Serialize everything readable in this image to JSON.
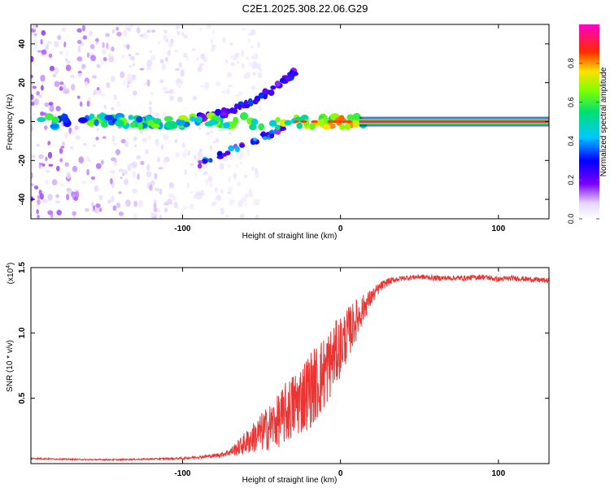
{
  "figure_title": "C2E1.2025.308.22.06.G29",
  "chart_data": [
    {
      "type": "heatmap",
      "title": "C2E1.2025.308.22.06.G29",
      "xlabel": "Height of straight line (km)",
      "ylabel": "Frequency (Hz)",
      "xlim": [
        -196,
        132
      ],
      "ylim": [
        -50,
        50
      ],
      "xticks": [
        -100,
        0,
        100
      ],
      "yticks": [
        -40,
        -20,
        0,
        20,
        40
      ],
      "colorbar": {
        "label": "Normalized spectral amplitude",
        "range": [
          0,
          1
        ],
        "ticks": [
          0.0,
          0.2,
          0.4,
          0.6,
          0.8
        ],
        "tick_labels": [
          "0.0",
          "0.2",
          "0.4",
          "0.6",
          "0.8"
        ]
      },
      "features": [
        {
          "name": "carrier",
          "description": "main frequency line",
          "frequency_hz": 0,
          "x_range_km": [
            -196,
            132
          ],
          "amplitude_left": 0.35,
          "amplitude_right": 0.95
        },
        {
          "name": "upper branch",
          "frequency_start_hz": 2,
          "frequency_end_hz": 27,
          "x_range_km": [
            -90,
            -27
          ],
          "amplitude": 0.2
        },
        {
          "name": "lower branch",
          "frequency_start_hz": -23,
          "frequency_end_hz": -3,
          "x_range_km": [
            -92,
            -35
          ],
          "amplitude": 0.15
        },
        {
          "name": "noise region",
          "x_range_km": [
            -196,
            -85
          ],
          "frequency_range_hz": [
            -50,
            50
          ],
          "amplitude": 0.05
        }
      ]
    },
    {
      "type": "line",
      "xlabel": "Height of straight line (km)",
      "ylabel": "SNR (10 * v/v)",
      "multiplier_label": "(x10",
      "multiplier_exponent": "4",
      "multiplier_close": ")",
      "xlim": [
        -196,
        132
      ],
      "ylim": [
        0,
        1.5
      ],
      "xticks": [
        -100,
        0,
        100
      ],
      "yticks": [
        0.5,
        1.0,
        1.5
      ],
      "ytick_labels": [
        "0.5",
        "1.0",
        "1.5"
      ],
      "series": [
        {
          "name": "SNR",
          "color": "#ee3333",
          "x": [
            -196,
            -180,
            -160,
            -140,
            -120,
            -100,
            -90,
            -80,
            -75,
            -70,
            -65,
            -60,
            -55,
            -50,
            -45,
            -40,
            -35,
            -30,
            -25,
            -20,
            -15,
            -10,
            -5,
            0,
            5,
            10,
            15,
            20,
            25,
            30,
            35,
            40,
            50,
            60,
            70,
            80,
            90,
            100,
            110,
            120,
            132
          ],
          "y": [
            0.04,
            0.035,
            0.03,
            0.03,
            0.035,
            0.04,
            0.05,
            0.06,
            0.07,
            0.09,
            0.12,
            0.16,
            0.2,
            0.24,
            0.28,
            0.32,
            0.38,
            0.44,
            0.5,
            0.56,
            0.62,
            0.7,
            0.8,
            0.9,
            1.0,
            1.1,
            1.2,
            1.28,
            1.35,
            1.39,
            1.41,
            1.42,
            1.43,
            1.42,
            1.42,
            1.42,
            1.43,
            1.41,
            1.42,
            1.41,
            1.4
          ],
          "noise_amplitude": [
            0.005,
            0.005,
            0.005,
            0.005,
            0.005,
            0.008,
            0.01,
            0.015,
            0.02,
            0.03,
            0.06,
            0.09,
            0.12,
            0.15,
            0.18,
            0.2,
            0.24,
            0.26,
            0.28,
            0.3,
            0.3,
            0.3,
            0.26,
            0.24,
            0.2,
            0.16,
            0.1,
            0.06,
            0.04,
            0.03,
            0.02,
            0.02,
            0.02,
            0.02,
            0.02,
            0.02,
            0.02,
            0.02,
            0.02,
            0.02,
            0.02
          ]
        }
      ]
    }
  ],
  "colors": {
    "snr_line": "#ee3333",
    "axes": "#000000",
    "carrier_hot": "#ff2222",
    "noise": "#8a2be2"
  }
}
